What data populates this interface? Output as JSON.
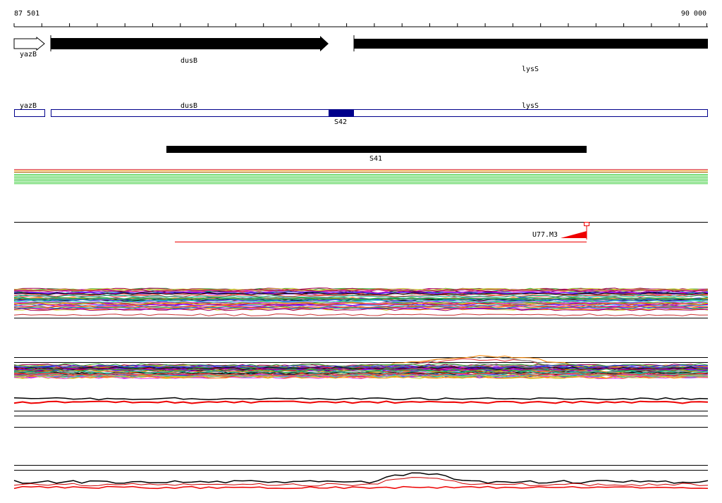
{
  "ruler": {
    "start": "87 501",
    "end": "90 000"
  },
  "genes": [
    {
      "label": "yazB"
    },
    {
      "label": "dusB"
    },
    {
      "label": "lysS"
    }
  ],
  "transcripts": [
    {
      "label": "yazB"
    },
    {
      "label": "dusB"
    },
    {
      "label": "lysS"
    }
  ],
  "segments": [
    {
      "label": "S42"
    },
    {
      "label": "S41"
    }
  ],
  "probes": [
    {
      "label": "U77.M3"
    }
  ]
}
